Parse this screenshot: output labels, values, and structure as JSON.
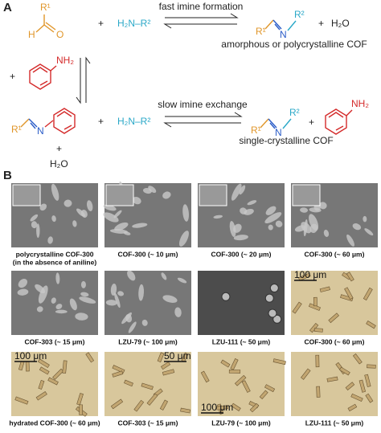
{
  "panel_a": {
    "label": "A",
    "top": {
      "aldehyde_r1": "R¹",
      "aldehyde_h": "H",
      "aldehyde_o": "O",
      "plus": "+",
      "amine": "H₂N–R²",
      "arrow_label": "fast imine formation",
      "product_r1": "R¹",
      "product_n": "N",
      "product_r2": "R²",
      "product_plus": "+",
      "water": "H₂O",
      "product_label": "amorphous or polycrystalline COF"
    },
    "aniline": {
      "plus": "+",
      "nh2": "NH₂"
    },
    "bottom": {
      "imine_r1": "R¹",
      "imine_n": "N",
      "plus": "+",
      "water": "H₂O",
      "amine_plus": "+",
      "amine": "H₂N–R²",
      "arrow_label": "slow imine exchange",
      "product_r1": "R¹",
      "product_n": "N",
      "product_r2": "R²",
      "product_plus": "+",
      "product_nh2": "NH₂",
      "product_label": "single-crystalline COF"
    }
  },
  "panel_b": {
    "label": "B",
    "rows": [
      [
        {
          "caption": [
            "polycrystalline COF-300",
            "(in the absence of aniline)"
          ]
        },
        {
          "caption": [
            "COF-300 (~ 10 μm)"
          ]
        },
        {
          "caption": [
            "COF-300 (~ 20 μm)"
          ]
        },
        {
          "caption": [
            "COF-300 (~ 60 μm)"
          ]
        }
      ],
      [
        {
          "caption": [
            "COF-303 (~ 15 μm)"
          ]
        },
        {
          "caption": [
            "LZU-79 (~ 100 μm)"
          ]
        },
        {
          "caption": [
            "LZU-111 (~ 50 μm)"
          ]
        },
        {
          "caption": [
            "COF-300 (~ 60 μm)"
          ],
          "scale_bar": "100 μm"
        }
      ],
      [
        {
          "caption": [
            "hydrated COF-300 (~ 60 μm)"
          ],
          "scale_bar": "100 μm"
        },
        {
          "caption": [
            "COF-303 (~ 15 μm)"
          ],
          "scale_bar": "50 μm"
        },
        {
          "caption": [
            "LZU-79 (~ 100 μm)"
          ],
          "scale_bar": "100 μm"
        },
        {
          "caption": [
            "LZU-111 (~ 50 μm)"
          ]
        }
      ]
    ]
  }
}
